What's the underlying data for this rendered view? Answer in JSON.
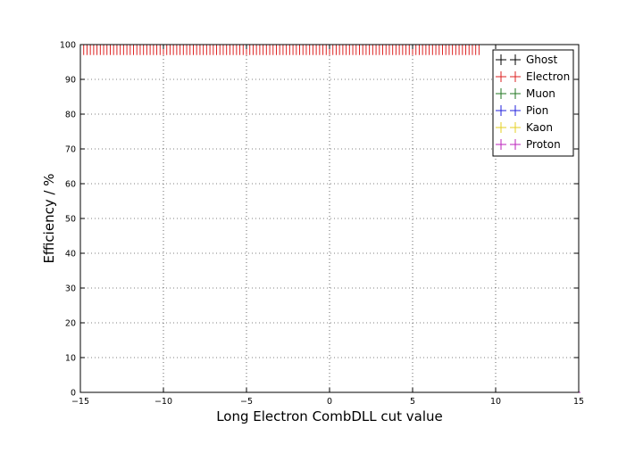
{
  "chart_data": {
    "type": "scatter",
    "xlabel": "Long Electron CombDLL cut value",
    "ylabel": "Efficiency / %",
    "xlim": [
      -15,
      15
    ],
    "ylim": [
      0,
      100
    ],
    "x_ticks": [
      -15,
      -10,
      -5,
      0,
      5,
      10,
      15
    ],
    "y_ticks": [
      0,
      10,
      20,
      30,
      40,
      50,
      60,
      70,
      80,
      90,
      100
    ],
    "grid": true,
    "legend_position": "top-right",
    "x_range": {
      "start": -14.8,
      "step": 0.2
    },
    "series": [
      {
        "name": "Ghost",
        "color": "#000000",
        "top_value": 0,
        "bottom_value": 0,
        "error_low": 0,
        "bottom_cap": false
      },
      {
        "name": "Electron",
        "color": "#dd2222",
        "top_value": 100,
        "top_until": 9.0,
        "bottom_value": 0,
        "error_low": 3,
        "bottom_cap": true
      },
      {
        "name": "Muon",
        "color": "#227722",
        "top_value": 0,
        "bottom_value": 0,
        "error_low": 0,
        "bottom_cap": true
      },
      {
        "name": "Pion",
        "color": "#2222dd",
        "top_value": 0,
        "bottom_value": 0,
        "error_low": 0,
        "bottom_cap": true
      },
      {
        "name": "Kaon",
        "color": "#e6cf22",
        "top_value": 0,
        "bottom_value": 0,
        "error_low": 0,
        "bottom_cap": true
      },
      {
        "name": "Proton",
        "color": "#bb22bb",
        "top_value": 0,
        "bottom_value": 0,
        "error_low": 0,
        "bottom_cap": true
      }
    ]
  }
}
